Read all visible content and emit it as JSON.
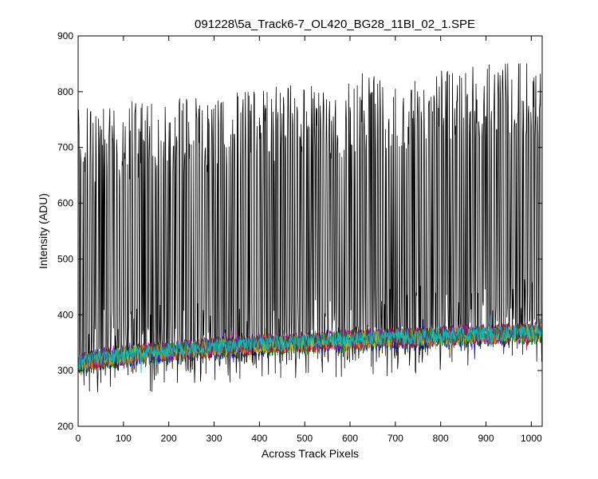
{
  "chart_data": {
    "type": "line",
    "title": "091228\\5a_Track6-7_OL420_BG28_11BI_02_1.SPE",
    "xlabel": "Across Track Pixels",
    "ylabel": "Intensity (ADU)",
    "xlim": [
      0,
      1024
    ],
    "ylim": [
      200,
      900
    ],
    "x_ticks": [
      0,
      100,
      200,
      300,
      400,
      500,
      600,
      700,
      800,
      900,
      1000
    ],
    "y_ticks": [
      200,
      300,
      400,
      500,
      600,
      700,
      800,
      900
    ],
    "x_tick_labels": [
      "0",
      "100",
      "200",
      "300",
      "400",
      "500",
      "600",
      "700",
      "800",
      "900",
      "1000"
    ],
    "y_tick_labels": [
      "200",
      "300",
      "400",
      "500",
      "600",
      "700",
      "800",
      "900"
    ],
    "grid": false,
    "legend": "none",
    "series": [
      {
        "color": "#000000",
        "x_range": [
          1,
          1024
        ],
        "description_of_shape": "oscillating spectrum alternating between baseline and peaks",
        "baseline_start": 310,
        "baseline_end": 370,
        "peak_start": 700,
        "peak_end": 790,
        "peak_max": 850
      },
      {
        "color": "#0000ff",
        "x_range": [
          1,
          1024
        ],
        "baseline_start": 305,
        "baseline_end": 365,
        "noise": 18
      },
      {
        "color": "#008000",
        "x_range": [
          1,
          1024
        ],
        "baseline_start": 305,
        "baseline_end": 365,
        "noise": 18
      },
      {
        "color": "#ff0000",
        "x_range": [
          1,
          1024
        ],
        "baseline_start": 308,
        "baseline_end": 368,
        "noise": 18
      },
      {
        "color": "#bf00bf",
        "x_range": [
          1,
          1024
        ],
        "baseline_start": 310,
        "baseline_end": 370,
        "noise": 18
      },
      {
        "color": "#bfbf00",
        "x_range": [
          1,
          1024
        ],
        "baseline_start": 308,
        "baseline_end": 368,
        "noise": 16
      },
      {
        "color": "#404040",
        "x_range": [
          1,
          1024
        ],
        "baseline_start": 312,
        "baseline_end": 372,
        "noise": 16
      },
      {
        "color": "#00bfbf",
        "x_range": [
          1,
          1024
        ],
        "baseline_start": 310,
        "baseline_end": 370,
        "noise": 14
      }
    ]
  }
}
